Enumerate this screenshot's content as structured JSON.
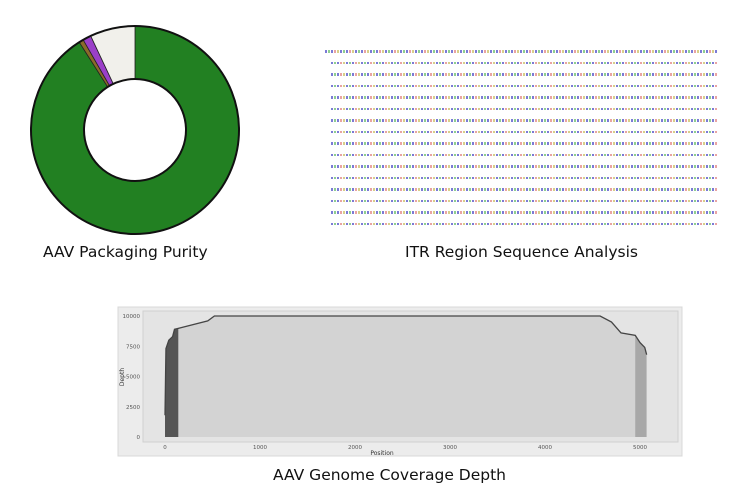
{
  "captions": {
    "donut": "AAV Packaging Purity",
    "itr": "ITR Region Sequence Analysis",
    "coverage": "AAV Genome Coverage Depth"
  },
  "chart_data": [
    {
      "type": "pie",
      "variant": "donut",
      "title": "AAV Packaging Purity",
      "slices": [
        {
          "value": 91.0,
          "color": "#228022"
        },
        {
          "value": 0.7,
          "color": "#8a6a2a"
        },
        {
          "value": 1.3,
          "color": "#9a3fc8"
        },
        {
          "value": 7.0,
          "color": "#f1f0eb"
        }
      ]
    },
    {
      "type": "area",
      "title": "AAV Genome Coverage Depth",
      "xlabel": "Position",
      "ylabel": "Depth",
      "xlim": [
        -150,
        5200
      ],
      "ylim": [
        -300,
        10300
      ],
      "xticks": [
        0,
        1000,
        2000,
        3000,
        4000,
        5000
      ],
      "yticks": [
        0,
        2500,
        5000,
        7500,
        10000
      ],
      "x": [
        0,
        0,
        10,
        40,
        80,
        100,
        150,
        300,
        450,
        520,
        4580,
        4700,
        4800,
        4950,
        5000,
        5050,
        5070,
        5070
      ],
      "y": [
        0,
        1800,
        7300,
        8000,
        8300,
        8900,
        9000,
        9300,
        9600,
        10000,
        10000,
        9500,
        8600,
        8400,
        7800,
        7400,
        6800,
        0
      ],
      "highlight_regions": [
        {
          "range": [
            0,
            140
          ],
          "color": "#555555"
        },
        {
          "range": [
            4950,
            5070
          ],
          "color": "#a8a8a8"
        }
      ],
      "fill": "#d3d3d3",
      "panel": "#e4e4e4"
    },
    {
      "type": "table",
      "title": "ITR Region Sequence Analysis",
      "rows": 16
    }
  ]
}
